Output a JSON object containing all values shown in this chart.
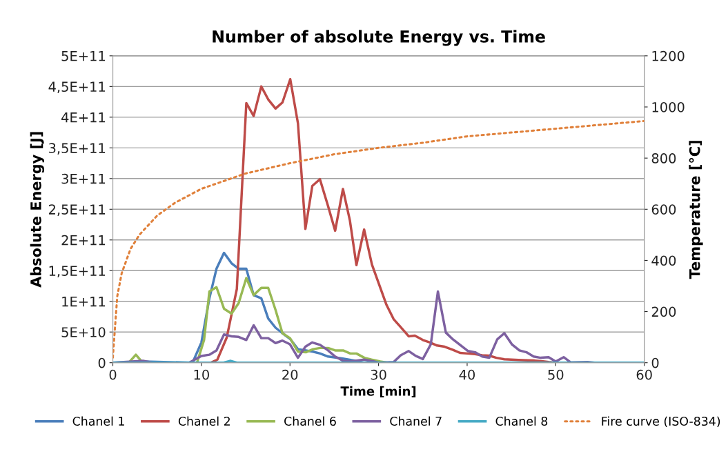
{
  "chart_data": {
    "type": "line",
    "title": "Number of absolute Energy vs. Time",
    "xlabel": "Time [min]",
    "ylabel": "Absolute Energy [J]",
    "y2label": "Temperature [°C]",
    "xlim": [
      0,
      60
    ],
    "xticks": [
      0,
      10,
      20,
      30,
      40,
      50,
      60
    ],
    "ylim": [
      0,
      500000000000.0
    ],
    "yticks": [
      {
        "value": 0,
        "label": "0"
      },
      {
        "value": 50000000000.0,
        "label": "5E+10"
      },
      {
        "value": 100000000000.0,
        "label": "1E+11"
      },
      {
        "value": 150000000000.0,
        "label": "1,5E+11"
      },
      {
        "value": 200000000000.0,
        "label": "2E+11"
      },
      {
        "value": 250000000000.0,
        "label": "2,5E+11"
      },
      {
        "value": 300000000000.0,
        "label": "3E+11"
      },
      {
        "value": 350000000000.0,
        "label": "3,5E+11"
      },
      {
        "value": 400000000000.0,
        "label": "4E+11"
      },
      {
        "value": 450000000000.0,
        "label": "4,5E+11"
      },
      {
        "value": 500000000000.0,
        "label": "5E+11"
      }
    ],
    "y2lim": [
      0,
      1200
    ],
    "y2ticks": [
      0,
      200,
      400,
      600,
      800,
      1000,
      1200
    ],
    "grid": "y",
    "legend": "bottom",
    "marker": "none",
    "line_style": "solid",
    "series": [
      {
        "name": "Chanel 1",
        "color": "#4a7ebb",
        "x": [
          0,
          3.5,
          9.0,
          10.0,
          10.9,
          11.7,
          12.55,
          13.4,
          14.2,
          15.07,
          15.9,
          16.76,
          17.54,
          18.37,
          19.15,
          20.0,
          20.9,
          21.8,
          22.6,
          23.4,
          24.3,
          25.85,
          27.4,
          28.3,
          29.5,
          60
        ],
        "values": [
          0,
          2000000000.0,
          0,
          33000000000.0,
          105000000000.0,
          153000000000.0,
          179000000000.0,
          162000000000.0,
          153000000000.0,
          153000000000.0,
          110000000000.0,
          105000000000.0,
          72000000000.0,
          57000000000.0,
          48000000000.0,
          39000000000.0,
          22000000000.0,
          20000000000.0,
          18000000000.0,
          15000000000.0,
          10000000000.0,
          7000000000.0,
          3000000000.0,
          0,
          0,
          0
        ]
      },
      {
        "name": "Chanel 2",
        "color": "#be4b48",
        "x": [
          0,
          11.04,
          11.8,
          12.86,
          14.0,
          15.07,
          15.9,
          16.76,
          17.54,
          18.37,
          19.15,
          20.03,
          20.9,
          21.74,
          22.52,
          23.38,
          24.3,
          25.1,
          25.98,
          26.76,
          27.5,
          28.37,
          29.25,
          30.9,
          31.7,
          32.5,
          33.4,
          34.1,
          35.0,
          35.8,
          36.6,
          37.46,
          38.4,
          39.2,
          40.05,
          40.9,
          41.7,
          42.5,
          43.3,
          44.2,
          45.0,
          45.8,
          46.8,
          47.6,
          48.4,
          49.2,
          50,
          60
        ],
        "values": [
          0,
          0,
          5000000000.0,
          41000000000.0,
          120000000000.0,
          423000000000.0,
          402000000000.0,
          450000000000.0,
          429000000000.0,
          414000000000.0,
          424000000000.0,
          462000000000.0,
          390000000000.0,
          218000000000.0,
          288000000000.0,
          299000000000.0,
          255000000000.0,
          215000000000.0,
          283000000000.0,
          232000000000.0,
          159000000000.0,
          217000000000.0,
          160000000000.0,
          94000000000.0,
          71000000000.0,
          58000000000.0,
          43000000000.0,
          44000000000.0,
          37000000000.0,
          33000000000.0,
          28000000000.0,
          26000000000.0,
          21000000000.0,
          16000000000.0,
          15000000000.0,
          14000000000.0,
          12000000000.0,
          11500000000.0,
          8000000000.0,
          5600000000.0,
          5000000000.0,
          4500000000.0,
          4000000000.0,
          3500000000.0,
          2500000000.0,
          1000000000.0,
          0,
          0
        ]
      },
      {
        "name": "Chanel 6",
        "color": "#98b954",
        "x": [
          0,
          1.8,
          2.6,
          3.25,
          4.0,
          9.5,
          10.3,
          10.9,
          11.7,
          12.55,
          13.4,
          14.2,
          15.07,
          15.9,
          16.76,
          17.54,
          18.37,
          19.15,
          20.0,
          20.9,
          21.8,
          22.6,
          23.4,
          24.3,
          25.1,
          26.0,
          26.8,
          27.5,
          28.4,
          29.2,
          30.2,
          31.0,
          60
        ],
        "values": [
          0,
          0,
          13000000000.0,
          2000000000.0,
          0,
          0,
          37000000000.0,
          116000000000.0,
          123000000000.0,
          88000000000.0,
          80000000000.0,
          97000000000.0,
          138000000000.0,
          110000000000.0,
          122000000000.0,
          122000000000.0,
          86000000000.0,
          48000000000.0,
          40000000000.0,
          18000000000.0,
          17000000000.0,
          22000000000.0,
          24000000000.0,
          24000000000.0,
          20000000000.0,
          20000000000.0,
          15000000000.0,
          15000000000.0,
          8000000000.0,
          5000000000.0,
          2000000000.0,
          0,
          0
        ]
      },
      {
        "name": "Chanel 7",
        "color": "#7d60a0",
        "x": [
          0,
          3.4,
          4.5,
          8.6,
          10.0,
          10.9,
          11.7,
          12.55,
          13.4,
          14.2,
          15.07,
          15.9,
          16.76,
          17.54,
          18.37,
          19.15,
          20.0,
          20.9,
          21.74,
          22.5,
          23.4,
          24.3,
          25.1,
          26.0,
          26.8,
          28.37,
          29.5,
          30.0,
          31.7,
          32.5,
          33.4,
          34.2,
          35.0,
          35.9,
          36.7,
          37.6,
          38.4,
          39.3,
          40.1,
          40.9,
          41.7,
          42.5,
          43.4,
          44.2,
          45.05,
          45.9,
          46.7,
          47.5,
          48.3,
          49.2,
          50.0,
          50.9,
          51.7,
          53.6,
          54.4,
          60
        ],
        "values": [
          0,
          3000000000.0,
          0,
          0,
          11000000000.0,
          13000000000.0,
          20000000000.0,
          46000000000.0,
          43000000000.0,
          42000000000.0,
          37000000000.0,
          61000000000.0,
          40000000000.0,
          40000000000.0,
          32000000000.0,
          36000000000.0,
          30000000000.0,
          8000000000.0,
          26000000000.0,
          33000000000.0,
          29000000000.0,
          20000000000.0,
          10000000000.0,
          3000000000.0,
          2000000000.0,
          5000000000.0,
          2000000000.0,
          0,
          1000000000.0,
          12000000000.0,
          19000000000.0,
          11000000000.0,
          6000000000.0,
          30000000000.0,
          116000000000.0,
          49000000000.0,
          38000000000.0,
          28000000000.0,
          19000000000.0,
          17000000000.0,
          10000000000.0,
          8000000000.0,
          38000000000.0,
          48000000000.0,
          30000000000.0,
          20000000000.0,
          17000000000.0,
          10000000000.0,
          8000000000.0,
          9000000000.0,
          2000000000.0,
          9000000000.0,
          500000000.0,
          1000000000.0,
          0,
          0
        ]
      },
      {
        "name": "Chanel 8",
        "color": "#46aac5",
        "x": [
          0,
          12.5,
          13.3,
          14.0,
          60
        ],
        "values": [
          0,
          0,
          3000000000.0,
          0,
          0
        ]
      },
      {
        "name": "Fire curve (ISO-834)",
        "color": "#e0803a",
        "axis": "y2",
        "line_style": "dotted",
        "x": [
          0,
          0.5,
          1,
          2,
          3,
          5,
          7,
          10,
          15,
          20,
          25,
          30,
          35,
          40,
          45,
          50,
          55,
          60
        ],
        "values": [
          20,
          260,
          350,
          445,
          500,
          575,
          625,
          680,
          740,
          780,
          815,
          840,
          860,
          885,
          900,
          915,
          930,
          945
        ]
      }
    ]
  }
}
